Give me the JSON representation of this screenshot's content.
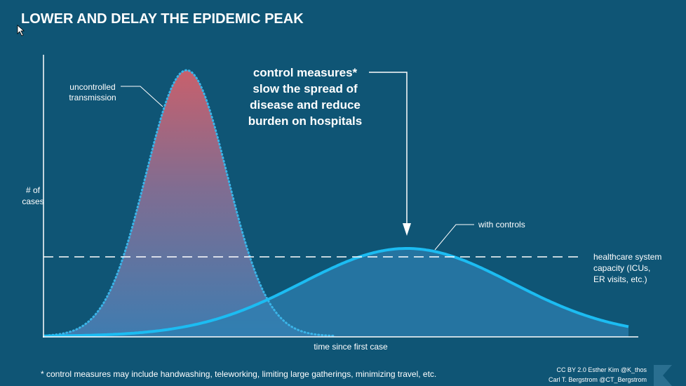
{
  "title": "LOWER AND DELAY THE EPIDEMIC PEAK",
  "y_axis_label": [
    "# of",
    "cases"
  ],
  "x_axis_label": "time since first case",
  "uncontrolled_label": [
    "uncontrolled",
    "transmission"
  ],
  "controls_label": "with controls",
  "annotation": [
    "control measures*",
    "slow the spread of",
    "disease and reduce",
    "burden on hospitals"
  ],
  "capacity_label": [
    "healthcare system",
    "capacity (ICUs,",
    "ER visits, etc.)"
  ],
  "footnote": "* control measures may include handwashing, teleworking, limiting large gatherings, minimizing travel, etc.",
  "credits": [
    "CC BY 2.0  Esther Kim  @K_thos",
    "Carl T. Bergstrom  @CT_Bergstrom"
  ]
}
